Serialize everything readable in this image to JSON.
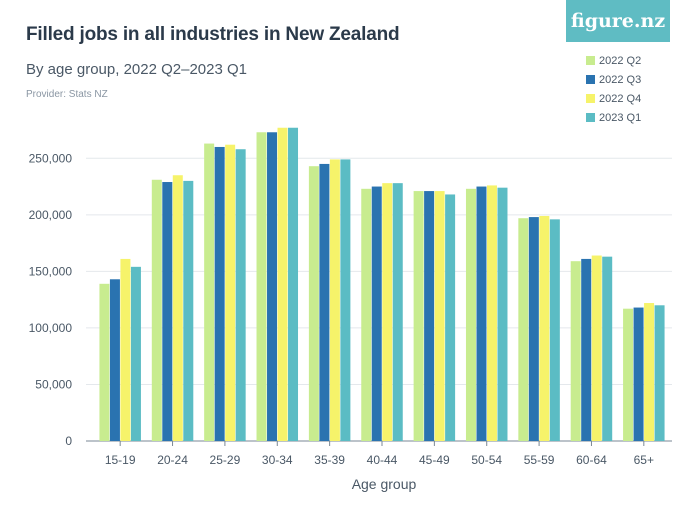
{
  "header": {
    "title": "Filled jobs in all industries in New Zealand",
    "subtitle": "By age group, 2022 Q2–2023 Q1",
    "provider": "Provider: Stats NZ",
    "logo_text": "figure.nz"
  },
  "colors": {
    "series": [
      "#c8ec8f",
      "#2a73b0",
      "#f6f36a",
      "#5bbcc4"
    ],
    "grid": "#e4e8ec",
    "axis": "#7a8794",
    "logo_bg": "#5fbcc3"
  },
  "chart_data": {
    "type": "bar",
    "title": "Filled jobs in all industries in New Zealand",
    "subtitle": "By age group, 2022 Q2–2023 Q1",
    "xlabel": "Age group",
    "ylabel": "",
    "ylim": [
      0,
      275000
    ],
    "yticks": [
      0,
      50000,
      100000,
      150000,
      200000,
      250000
    ],
    "ytick_labels": [
      "0",
      "50,000",
      "100,000",
      "150,000",
      "200,000",
      "250,000"
    ],
    "legend_position": "top-right",
    "categories": [
      "15-19",
      "20-24",
      "25-29",
      "30-34",
      "35-39",
      "40-44",
      "45-49",
      "50-54",
      "55-59",
      "60-64",
      "65+"
    ],
    "series": [
      {
        "name": "2022 Q2",
        "values": [
          139000,
          231000,
          263000,
          273000,
          243000,
          223000,
          221000,
          223000,
          197000,
          159000,
          117000
        ]
      },
      {
        "name": "2022 Q3",
        "values": [
          143000,
          229000,
          260000,
          273000,
          245000,
          225000,
          221000,
          225000,
          198000,
          161000,
          118000
        ]
      },
      {
        "name": "2022 Q4",
        "values": [
          161000,
          235000,
          262000,
          277000,
          249000,
          228000,
          221000,
          226000,
          199000,
          164000,
          122000
        ]
      },
      {
        "name": "2023 Q1",
        "values": [
          154000,
          230000,
          258000,
          277000,
          249000,
          228000,
          218000,
          224000,
          196000,
          163000,
          120000
        ]
      }
    ]
  }
}
